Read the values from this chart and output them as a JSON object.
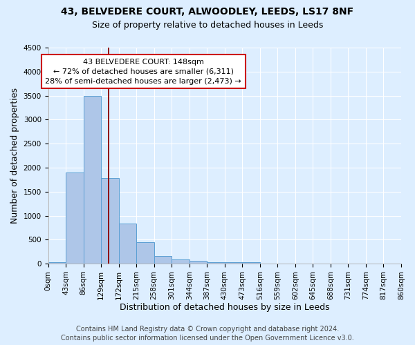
{
  "title_line1": "43, BELVEDERE COURT, ALWOODLEY, LEEDS, LS17 8NF",
  "title_line2": "Size of property relative to detached houses in Leeds",
  "xlabel": "Distribution of detached houses by size in Leeds",
  "ylabel": "Number of detached properties",
  "footer_line1": "Contains HM Land Registry data © Crown copyright and database right 2024.",
  "footer_line2": "Contains public sector information licensed under the Open Government Licence v3.0.",
  "annotation_line1": "43 BELVEDERE COURT: 148sqm",
  "annotation_line2": "← 72% of detached houses are smaller (6,311)",
  "annotation_line3": "28% of semi-detached houses are larger (2,473) →",
  "bar_edges": [
    0,
    43,
    86,
    129,
    172,
    215,
    258,
    301,
    344,
    387,
    430,
    473,
    516,
    559,
    602,
    645,
    688,
    731,
    774,
    817,
    860
  ],
  "bar_heights": [
    30,
    1900,
    3500,
    1780,
    830,
    450,
    155,
    90,
    55,
    35,
    25,
    30,
    0,
    0,
    0,
    0,
    0,
    0,
    0,
    0
  ],
  "bar_color": "#aec6e8",
  "bar_edge_color": "#5a9fd4",
  "vline_x": 148,
  "vline_color": "#8b0000",
  "bg_color": "#ddeeff",
  "plot_bg_color": "#ddeeff",
  "grid_color": "#ffffff",
  "ylim": [
    0,
    4500
  ],
  "yticks": [
    0,
    500,
    1000,
    1500,
    2000,
    2500,
    3000,
    3500,
    4000,
    4500
  ],
  "xtick_labels": [
    "0sqm",
    "43sqm",
    "86sqm",
    "129sqm",
    "172sqm",
    "215sqm",
    "258sqm",
    "301sqm",
    "344sqm",
    "387sqm",
    "430sqm",
    "473sqm",
    "516sqm",
    "559sqm",
    "602sqm",
    "645sqm",
    "688sqm",
    "731sqm",
    "774sqm",
    "817sqm",
    "860sqm"
  ],
  "annotation_box_facecolor": "#ffffff",
  "annotation_box_edgecolor": "#cc0000",
  "title_fontsize": 10,
  "subtitle_fontsize": 9,
  "axis_label_fontsize": 9,
  "tick_fontsize": 7.5,
  "annotation_fontsize": 8,
  "footer_fontsize": 7
}
